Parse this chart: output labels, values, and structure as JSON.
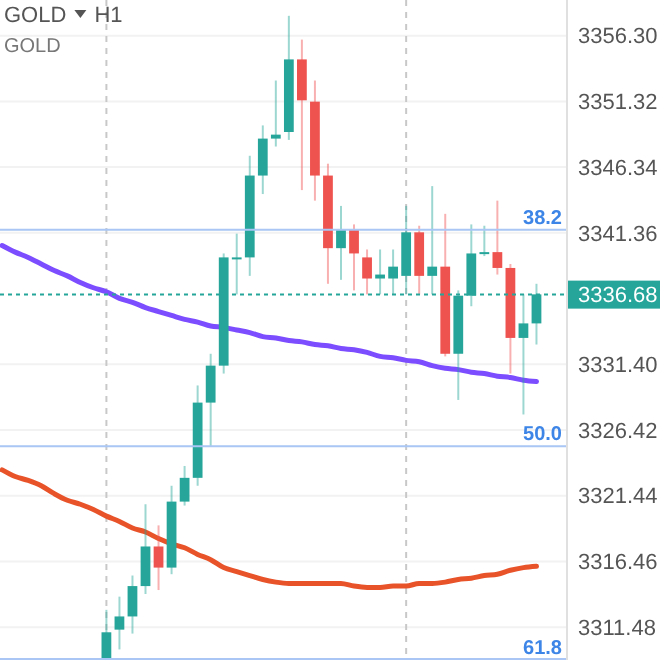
{
  "chart_data": {
    "type": "candlestick",
    "title": "GOLD",
    "subtitle": "H1",
    "annotations": [
      "GOLD",
      {
        "text": "38.2",
        "y": 3341.6
      },
      {
        "text": "50.0",
        "y": 3325.2
      },
      {
        "text": "61.8",
        "y": 3309.0
      }
    ],
    "categories": [
      null,
      null,
      null,
      null,
      null,
      null,
      null,
      null,
      null,
      null,
      null,
      null,
      null,
      null,
      null,
      null,
      null,
      null,
      null,
      null,
      null,
      null,
      null,
      null,
      null,
      null,
      null,
      null,
      null,
      null,
      null,
      null,
      null,
      null,
      null,
      null,
      null,
      null,
      null,
      null,
      null,
      null
    ],
    "colors": [
      null,
      null,
      null,
      null,
      null,
      null,
      null,
      null,
      "#26a69a",
      "#26a69a",
      "#26a69a",
      "#26a69a",
      "#ef5350",
      "#26a69a",
      "#26a69a",
      "#26a69a",
      "#26a69a",
      "#26a69a",
      "#26a69a",
      "#26a69a",
      "#26a69a",
      "#26a69a",
      "#26a69a",
      "#ef5350",
      "#ef5350",
      "#ef5350",
      "#26a69a",
      "#ef5350",
      "#ef5350",
      "#26a69a",
      "#26a69a",
      "#26a69a",
      "#ef5350",
      "#26a69a",
      "#ef5350",
      "#26a69a",
      "#26a69a",
      "#26a69a",
      "#ef5350",
      "#ef5350",
      "#26a69a",
      "#26a69a"
    ],
    "ohlc": [
      null,
      null,
      null,
      null,
      null,
      null,
      null,
      null,
      [
        3309.1,
        3312.8,
        3309.0,
        3311.1
      ],
      [
        3311.3,
        3313.8,
        3309.8,
        3312.3
      ],
      [
        3312.3,
        3315.4,
        3311.0,
        3314.6
      ],
      [
        3314.6,
        3320.8,
        3314.0,
        3317.6
      ],
      [
        3317.6,
        3319.2,
        3314.3,
        3316.0
      ],
      [
        3316.0,
        3322.2,
        3315.5,
        3321.0
      ],
      [
        3321.0,
        3323.7,
        3320.7,
        3322.8
      ],
      [
        3322.8,
        3329.8,
        3322.2,
        3328.5
      ],
      [
        3328.5,
        3332.2,
        3325.2,
        3331.3
      ],
      [
        3331.3,
        3339.8,
        3330.7,
        3339.5
      ],
      [
        3339.4,
        3341.3,
        3336.7,
        3339.5
      ],
      [
        3339.5,
        3347.2,
        3338.1,
        3345.7
      ],
      [
        3345.7,
        3349.5,
        3344.3,
        3348.5
      ],
      [
        3348.5,
        3352.9,
        3347.9,
        3348.8
      ],
      [
        3349.0,
        3357.8,
        3348.4,
        3354.5
      ],
      [
        3354.5,
        3356.0,
        3344.6,
        3351.4
      ],
      [
        3351.3,
        3352.9,
        3343.8,
        3345.7
      ],
      [
        3345.7,
        3346.6,
        3337.5,
        3340.2
      ],
      [
        3340.2,
        3343.4,
        3337.8,
        3341.6
      ],
      [
        3341.6,
        3342.0,
        3337.0,
        3339.8
      ],
      [
        3339.5,
        3340.1,
        3336.7,
        3337.9
      ],
      [
        3337.9,
        3340.1,
        3336.7,
        3338.2
      ],
      [
        3337.9,
        3340.1,
        3336.7,
        3338.8
      ],
      [
        3338.1,
        3343.4,
        3336.7,
        3341.4
      ],
      [
        3341.4,
        3341.9,
        3336.7,
        3338.1
      ],
      [
        3338.1,
        3344.9,
        3336.7,
        3338.8
      ],
      [
        3338.8,
        3342.8,
        3332.0,
        3332.2
      ],
      [
        3332.2,
        3337.0,
        3328.7,
        3336.6
      ],
      [
        3336.6,
        3342.0,
        3335.8,
        3339.8
      ],
      [
        3339.8,
        3341.9,
        3339.6,
        3339.9
      ],
      [
        3339.9,
        3343.8,
        3338.2,
        3338.7
      ],
      [
        3338.7,
        3339.0,
        3330.7,
        3333.4
      ],
      [
        3333.4,
        3336.7,
        3327.6,
        3334.5
      ],
      [
        3334.5,
        3337.5,
        3332.9,
        3336.7
      ]
    ],
    "series": [
      {
        "type": "line",
        "color": "#7c4dff",
        "values": [
          3340.4,
          3339.9,
          3339.5,
          3339.0,
          3338.5,
          3338.1,
          3337.6,
          3337.2,
          3336.9,
          3336.4,
          3336.1,
          3335.7,
          3335.4,
          3335.1,
          3334.8,
          3334.6,
          3334.3,
          3334.2,
          3334.0,
          3333.8,
          3333.5,
          3333.4,
          3333.2,
          3333.1,
          3332.9,
          3332.8,
          3332.6,
          3332.5,
          3332.3,
          3332.0,
          3331.9,
          3331.7,
          3331.6,
          3331.3,
          3331.1,
          3331.0,
          3330.8,
          3330.7,
          3330.5,
          3330.4,
          3330.2,
          3330.1
        ]
      },
      {
        "type": "line",
        "color": "#e8532a",
        "values": [
          3323.4,
          3322.9,
          3322.6,
          3322.2,
          3321.6,
          3321.1,
          3320.8,
          3320.4,
          3319.9,
          3319.5,
          3319.0,
          3318.7,
          3318.2,
          3317.8,
          3317.5,
          3317.0,
          3316.6,
          3316.0,
          3315.7,
          3315.4,
          3315.1,
          3314.9,
          3314.8,
          3314.8,
          3314.8,
          3314.8,
          3314.8,
          3314.6,
          3314.5,
          3314.5,
          3314.6,
          3314.6,
          3314.8,
          3314.8,
          3314.9,
          3315.1,
          3315.2,
          3315.4,
          3315.5,
          3315.8,
          3316.0,
          3316.1
        ]
      }
    ],
    "ylim": [
      3309.0,
      3359.0
    ],
    "yticks": [
      {
        "value": 3356.3,
        "label": "3356.30"
      },
      {
        "value": 3351.32,
        "label": "3351.32"
      },
      {
        "value": 3346.34,
        "label": "3346.34"
      },
      {
        "value": 3341.36,
        "label": "3341.36"
      },
      {
        "value": 3331.4,
        "label": "3331.40"
      },
      {
        "value": 3326.42,
        "label": "3326.42"
      },
      {
        "value": 3321.44,
        "label": "3321.44"
      },
      {
        "value": 3316.46,
        "label": "3316.46"
      },
      {
        "value": 3311.48,
        "label": "3311.48"
      }
    ],
    "grid": "y",
    "ref_lines": [
      {
        "axis": "y",
        "value": 3341.6,
        "color": "#a9c6f5",
        "line_style": "solid"
      },
      {
        "axis": "y",
        "value": 3325.2,
        "color": "#a9c6f5",
        "line_style": "solid"
      },
      {
        "axis": "y",
        "value": 3309.0,
        "color": "#a9c6f5",
        "line_style": "solid"
      },
      {
        "axis": "y",
        "value": 3336.68,
        "label": "3336.68",
        "color": "#26a69a",
        "line_style": "dotted"
      }
    ]
  }
}
